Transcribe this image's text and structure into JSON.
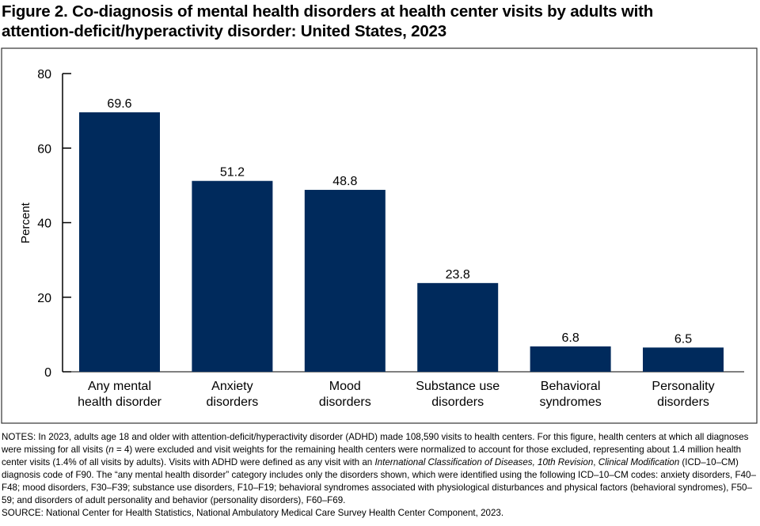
{
  "title_line1": "Figure 2. Co-diagnosis of mental health disorders at health center visits by adults with",
  "title_line2": "attention-deficit/hyperactivity disorder: United States, 2023",
  "chart_data": {
    "type": "bar",
    "title": "Figure 2. Co-diagnosis of mental health disorders at health center visits by adults with attention-deficit/hyperactivity disorder: United States, 2023",
    "xlabel": "",
    "ylabel": "Percent",
    "ylim": [
      0,
      80
    ],
    "yticks": [
      0,
      20,
      40,
      60,
      80
    ],
    "grid": false,
    "bar_color": "#002a5c",
    "categories": [
      [
        "Any mental",
        "health disorder"
      ],
      [
        "Anxiety",
        "disorders"
      ],
      [
        "Mood",
        "disorders"
      ],
      [
        "Substance use",
        "disorders"
      ],
      [
        "Behavioral",
        "syndromes"
      ],
      [
        "Personality",
        "disorders"
      ]
    ],
    "values": [
      69.6,
      51.2,
      48.8,
      23.8,
      6.8,
      6.5
    ],
    "data_labels": [
      "69.6",
      "51.2",
      "48.8",
      "23.8",
      "6.8",
      "6.5"
    ]
  },
  "notes": {
    "p1": "NOTES: In 2023, adults age 18 and older with attention-deficit/hyperactivity disorder (ADHD) made 108,590 visits to health centers. For this figure, health centers at which all diagnoses were missing for all visits (",
    "n": "n",
    "p2": " = 4) were excluded and visit weights for the remaining health centers were normalized to account for those excluded, representing about 1.4 million health center visits (1.4% of all visits by adults). Visits with ADHD were defined as any visit with an ",
    "icd_i": "International Classification of Diseases, 10th Revision",
    "p3": ", ",
    "cm_i": "Clinical Modification",
    "p4": " (ICD–10–CM) diagnosis code of F90. The “any mental health disorder” category includes only the disorders shown, which were identified using the following ICD–10–CM codes: anxiety disorders, F40–F48; mood disorders, F30–F39; substance use disorders, F10–F19; behavioral syndromes associated with physiological disturbances and physical factors (behavioral syndromes), F50–59; and disorders of adult personality and behavior (personality disorders), F60–F69.",
    "source": "SOURCE: National Center for Health Statistics, National Ambulatory Medical Care Survey Health Center Component, 2023."
  }
}
